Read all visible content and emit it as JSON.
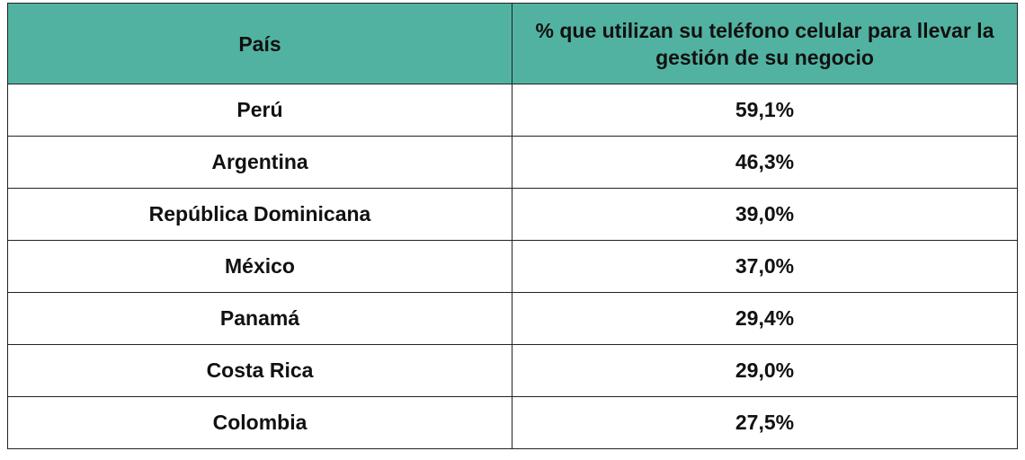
{
  "table": {
    "headers": [
      "País",
      "% que utilizan su teléfono celular para llevar la gestión de su negocio"
    ],
    "rows": [
      [
        "Perú",
        "59,1%"
      ],
      [
        "Argentina",
        "46,3%"
      ],
      [
        "República Dominicana",
        "39,0%"
      ],
      [
        "México",
        "37,0%"
      ],
      [
        "Panamá",
        "29,4%"
      ],
      [
        "Costa Rica",
        "29,0%"
      ],
      [
        "Colombia",
        "27,5%"
      ]
    ]
  }
}
